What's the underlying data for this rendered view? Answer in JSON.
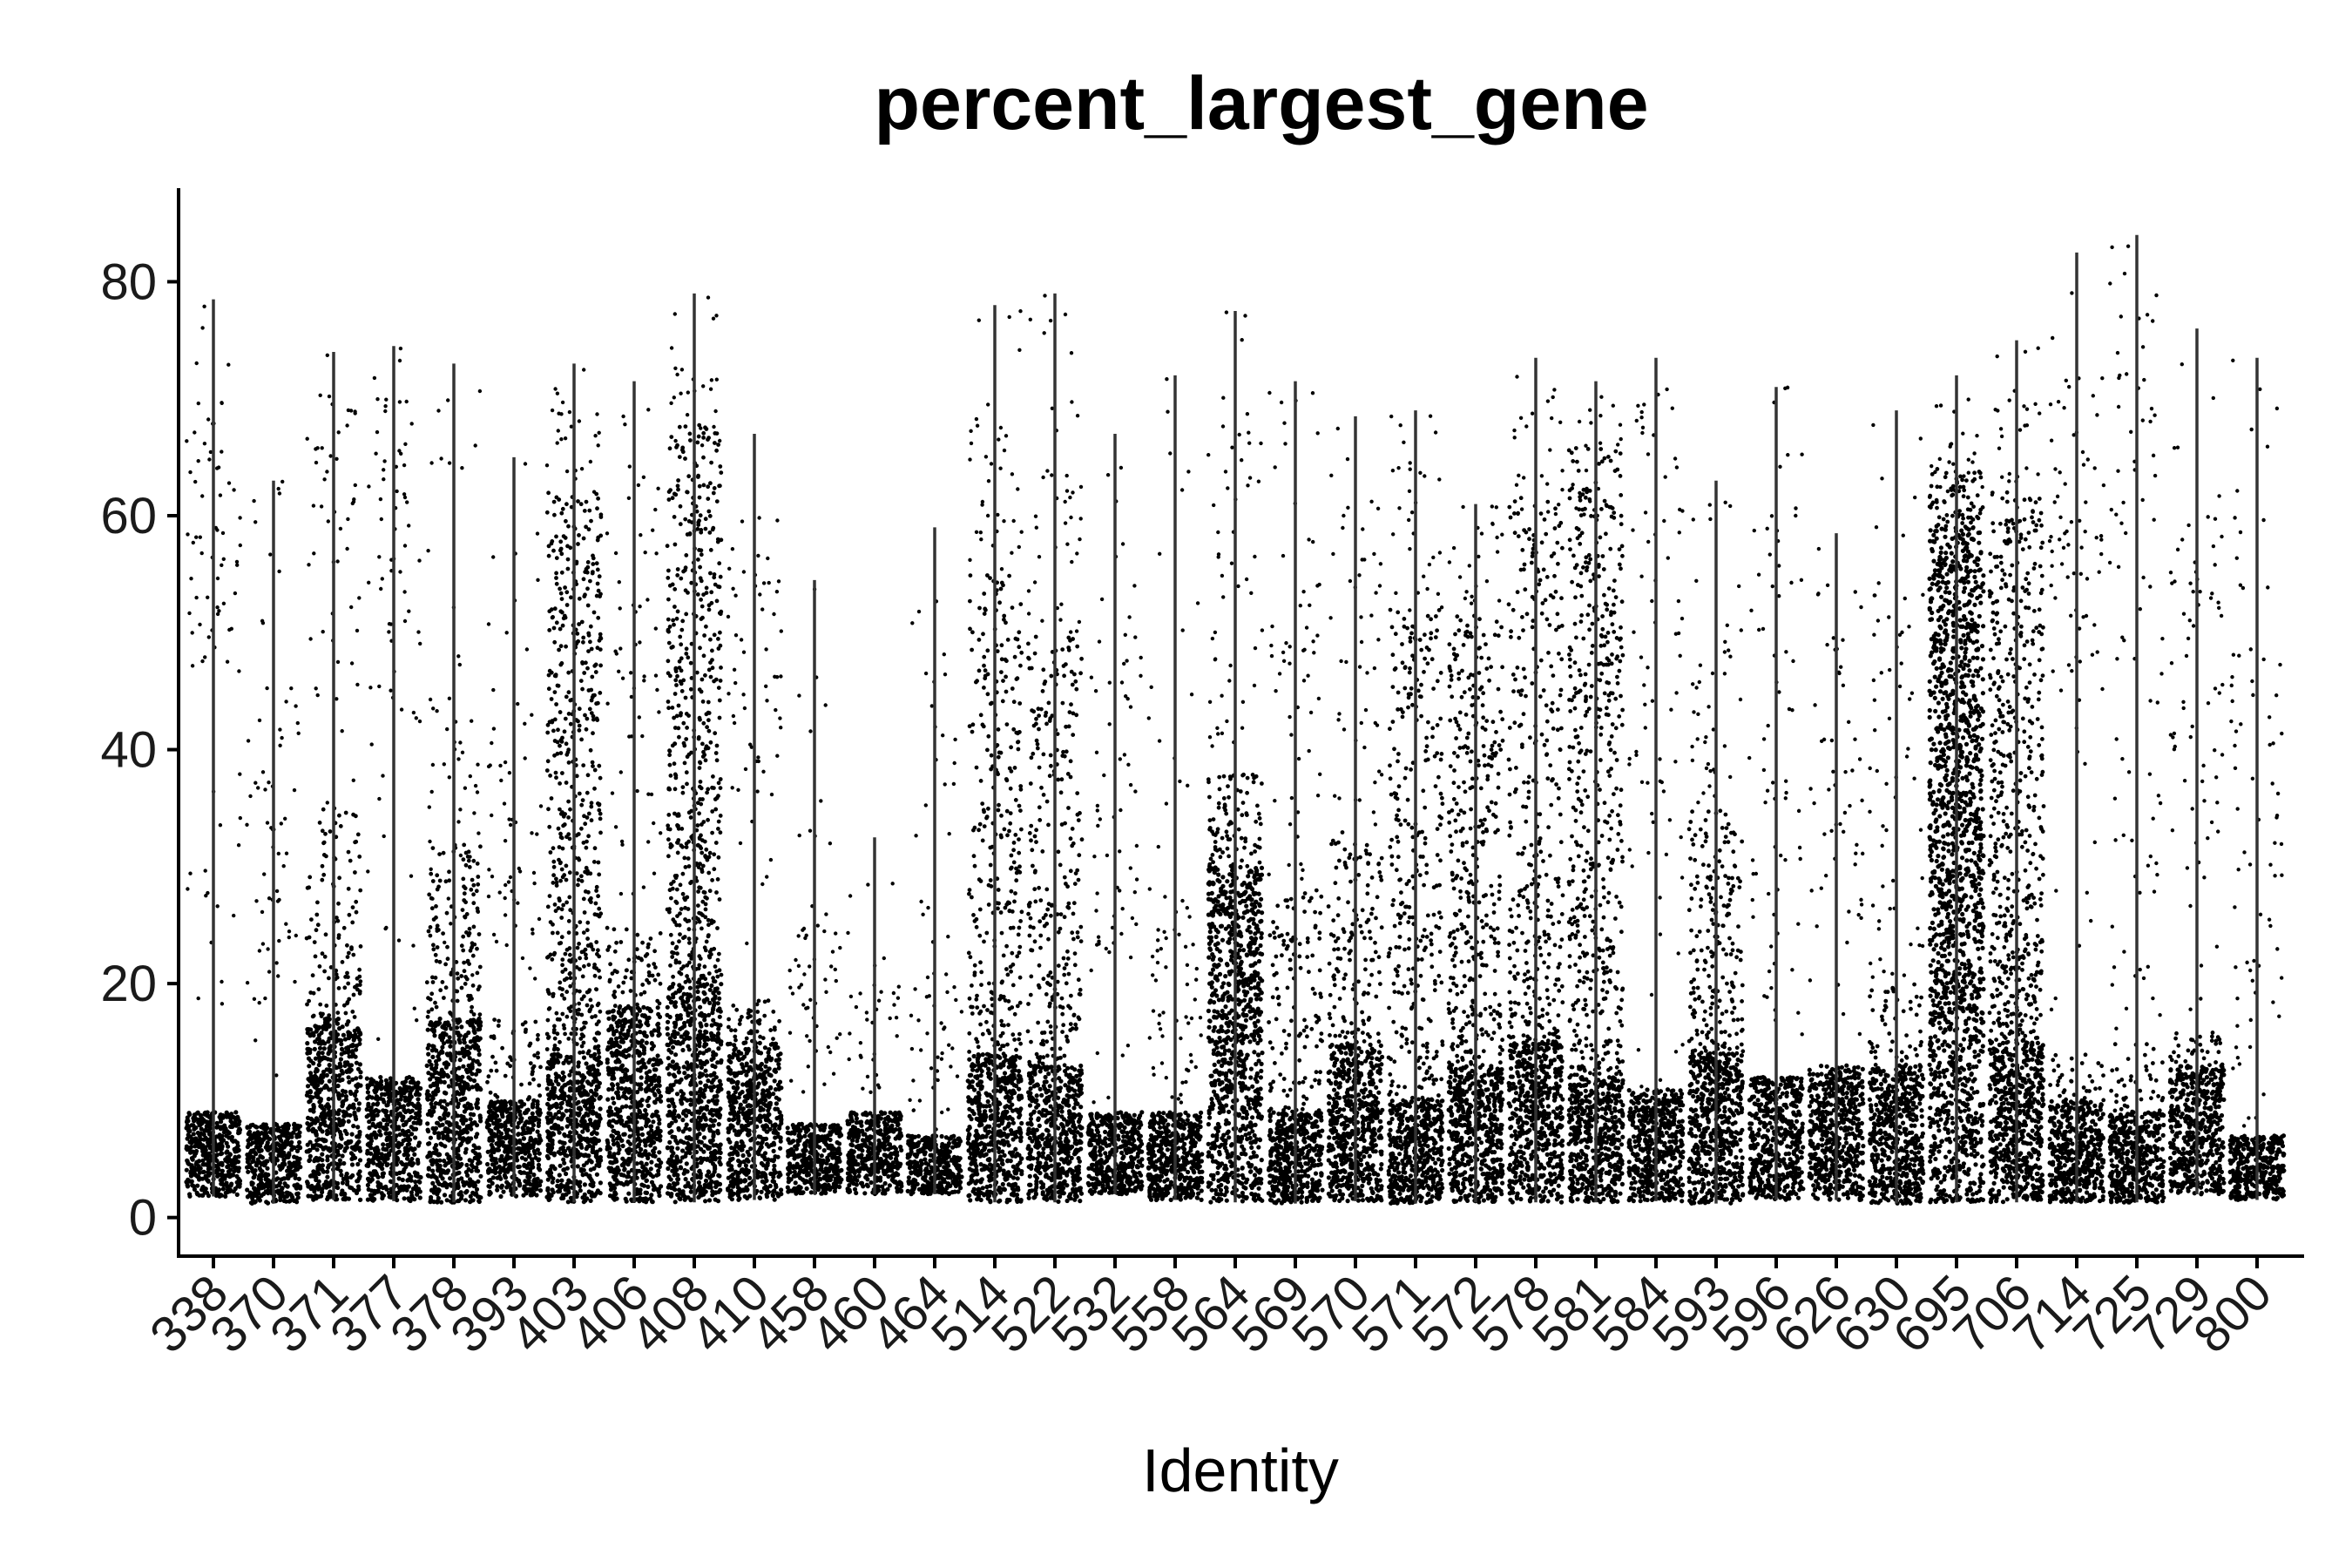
{
  "chart_data": {
    "type": "scatter",
    "subtype": "jittered strip plot with range lines",
    "title": "percent_largest_gene",
    "xlabel": "Identity",
    "ylabel": "",
    "ylim": [
      -3.3,
      88
    ],
    "yticks": [
      0,
      20,
      40,
      60,
      80
    ],
    "grid": false,
    "legend": "none",
    "colors": {
      "points": "#000000",
      "range_lines": "#333333",
      "axes": "#000000"
    },
    "categories": [
      "338",
      "370",
      "371",
      "377",
      "378",
      "393",
      "403",
      "406",
      "408",
      "410",
      "458",
      "460",
      "464",
      "514",
      "522",
      "532",
      "558",
      "564",
      "569",
      "570",
      "571",
      "572",
      "578",
      "581",
      "584",
      "593",
      "596",
      "626",
      "630",
      "695",
      "706",
      "714",
      "725",
      "729",
      "800"
    ],
    "groups": [
      {
        "id": "338",
        "min": 1.8,
        "max": 78.5,
        "bulk_top": 9,
        "mid_top": 0,
        "mid_density": 0,
        "upper": [
          45,
          70
        ]
      },
      {
        "id": "370",
        "min": 1.2,
        "max": 63,
        "bulk_top": 8,
        "mid_top": 0,
        "mid_density": 0,
        "upper": [
          20,
          45
        ]
      },
      {
        "id": "371",
        "min": 1.5,
        "max": 74,
        "bulk_top": 17,
        "mid_top": 35,
        "mid_density": 0.5,
        "upper": [
          45,
          70
        ]
      },
      {
        "id": "377",
        "min": 1.4,
        "max": 74.5,
        "bulk_top": 12,
        "mid_top": 0,
        "mid_density": 0,
        "upper": [
          40,
          70
        ]
      },
      {
        "id": "378",
        "min": 1.3,
        "max": 73,
        "bulk_top": 17,
        "mid_top": 32,
        "mid_density": 0.7,
        "upper": [
          20,
          45
        ]
      },
      {
        "id": "393",
        "min": 1.8,
        "max": 65,
        "bulk_top": 10,
        "mid_top": 17,
        "mid_density": 0.4,
        "upper": [
          20,
          45
        ]
      },
      {
        "id": "403",
        "min": 1.3,
        "max": 73,
        "bulk_top": 14,
        "mid_top": 62,
        "mid_density": 1.0,
        "upper": [
          60,
          70
        ]
      },
      {
        "id": "406",
        "min": 1.3,
        "max": 71.5,
        "bulk_top": 18,
        "mid_top": 25,
        "mid_density": 0.6,
        "upper": [
          30,
          60
        ]
      },
      {
        "id": "408",
        "min": 1.3,
        "max": 79,
        "bulk_top": 20,
        "mid_top": 68,
        "mid_density": 1.0,
        "upper": [
          66,
          72
        ]
      },
      {
        "id": "410",
        "min": 1.5,
        "max": 67,
        "bulk_top": 15,
        "mid_top": 19,
        "mid_density": 0.5,
        "upper": [
          35,
          60
        ]
      },
      {
        "id": "458",
        "min": 2.0,
        "max": 54.5,
        "bulk_top": 8,
        "mid_top": 0,
        "mid_density": 0,
        "upper": [
          10,
          25
        ]
      },
      {
        "id": "460",
        "min": 2.0,
        "max": 32.5,
        "bulk_top": 9,
        "mid_top": 0,
        "mid_density": 0,
        "upper": [
          10,
          20
        ]
      },
      {
        "id": "464",
        "min": 2.0,
        "max": 59,
        "bulk_top": 7,
        "mid_top": 0,
        "mid_density": 0,
        "upper": [
          9,
          20
        ]
      },
      {
        "id": "514",
        "min": 1.3,
        "max": 78,
        "bulk_top": 14,
        "mid_top": 55,
        "mid_density": 0.6,
        "upper": [
          55,
          70
        ]
      },
      {
        "id": "522",
        "min": 1.3,
        "max": 79,
        "bulk_top": 13,
        "mid_top": 50,
        "mid_density": 0.6,
        "upper": [
          50,
          65
        ]
      },
      {
        "id": "532",
        "min": 2.0,
        "max": 67,
        "bulk_top": 9,
        "mid_top": 0,
        "mid_density": 0,
        "upper": [
          20,
          50
        ]
      },
      {
        "id": "558",
        "min": 1.5,
        "max": 72,
        "bulk_top": 9,
        "mid_top": 0,
        "mid_density": 0,
        "upper": [
          10,
          25
        ]
      },
      {
        "id": "564",
        "min": 1.3,
        "max": 77.5,
        "bulk_top": 30,
        "mid_top": 38,
        "mid_density": 0.8,
        "upper": [
          40,
          70
        ]
      },
      {
        "id": "569",
        "min": 1.2,
        "max": 71.5,
        "bulk_top": 9,
        "mid_top": 28,
        "mid_density": 0.5,
        "upper": [
          30,
          60
        ]
      },
      {
        "id": "570",
        "min": 1.4,
        "max": 68.5,
        "bulk_top": 15,
        "mid_top": 33,
        "mid_density": 0.6,
        "upper": [
          35,
          60
        ]
      },
      {
        "id": "571",
        "min": 1.2,
        "max": 69,
        "bulk_top": 10,
        "mid_top": 52,
        "mid_density": 0.6,
        "upper": [
          50,
          65
        ]
      },
      {
        "id": "572",
        "min": 1.3,
        "max": 61,
        "bulk_top": 13,
        "mid_top": 52,
        "mid_density": 0.8,
        "upper": [
          52,
          60
        ]
      },
      {
        "id": "578",
        "min": 1.3,
        "max": 73.5,
        "bulk_top": 15,
        "mid_top": 62,
        "mid_density": 0.6,
        "upper": [
          60,
          72
        ]
      },
      {
        "id": "581",
        "min": 1.3,
        "max": 71.5,
        "bulk_top": 12,
        "mid_top": 66,
        "mid_density": 0.8,
        "upper": [
          60,
          70
        ]
      },
      {
        "id": "584",
        "min": 1.4,
        "max": 73.5,
        "bulk_top": 11,
        "mid_top": 0,
        "mid_density": 0,
        "upper": [
          25,
          70
        ]
      },
      {
        "id": "593",
        "min": 1.2,
        "max": 63,
        "bulk_top": 14,
        "mid_top": 35,
        "mid_density": 0.8,
        "upper": [
          35,
          50
        ]
      },
      {
        "id": "596",
        "min": 1.5,
        "max": 71,
        "bulk_top": 12,
        "mid_top": 0,
        "mid_density": 0,
        "upper": [
          15,
          70
        ]
      },
      {
        "id": "626",
        "min": 1.5,
        "max": 58.5,
        "bulk_top": 13,
        "mid_top": 0,
        "mid_density": 0,
        "upper": [
          15,
          55
        ]
      },
      {
        "id": "630",
        "min": 1.2,
        "max": 69,
        "bulk_top": 13,
        "mid_top": 20,
        "mid_density": 0.4,
        "upper": [
          20,
          55
        ]
      },
      {
        "id": "695",
        "min": 1.3,
        "max": 72,
        "bulk_top": 59,
        "mid_top": 64,
        "mid_density": 1.0,
        "upper": [
          62,
          68
        ]
      },
      {
        "id": "706",
        "min": 1.3,
        "max": 75,
        "bulk_top": 15,
        "mid_top": 62,
        "mid_density": 1.0,
        "upper": [
          60,
          70
        ]
      },
      {
        "id": "714",
        "min": 1.3,
        "max": 82.5,
        "bulk_top": 10,
        "mid_top": 14,
        "mid_density": 0.3,
        "upper": [
          45,
          72
        ]
      },
      {
        "id": "725",
        "min": 1.3,
        "max": 84,
        "bulk_top": 9,
        "mid_top": 15,
        "mid_density": 0.3,
        "upper": [
          15,
          80
        ]
      },
      {
        "id": "729",
        "min": 2.0,
        "max": 76,
        "bulk_top": 13,
        "mid_top": 16,
        "mid_density": 0.4,
        "upper": [
          30,
          60
        ]
      },
      {
        "id": "800",
        "min": 1.5,
        "max": 73.5,
        "bulk_top": 7,
        "mid_top": 0,
        "mid_density": 0,
        "upper": [
          8,
          50
        ]
      }
    ]
  }
}
